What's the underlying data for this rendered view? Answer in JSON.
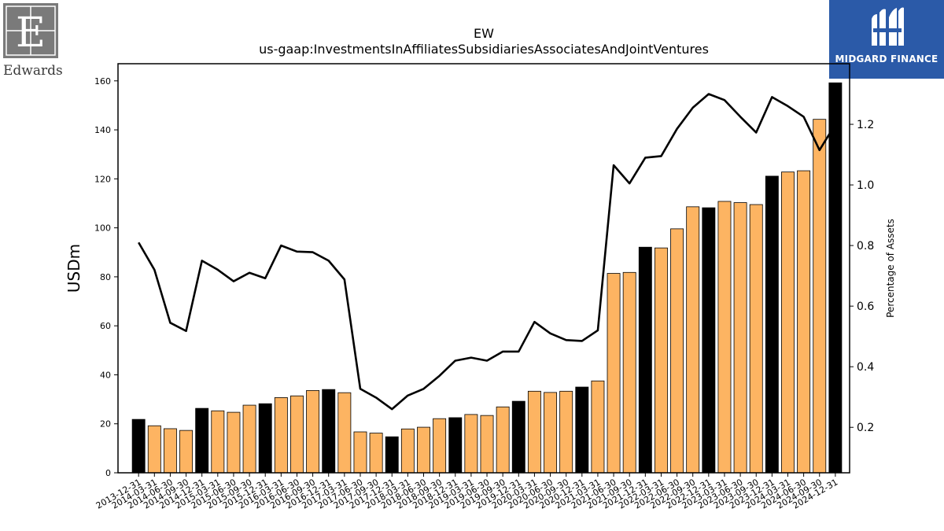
{
  "logos": {
    "left_brand": "Edwards",
    "right_brand": "MIDGARD FINANCE"
  },
  "chart_data": {
    "type": "bar+line",
    "title": "EW",
    "subtitle": "us-gaap:InvestmentsInAffiliatesSubsidiariesAssociatesAndJointVentures",
    "ylabel": "USDm",
    "y2label": "Percentage of Assets",
    "ylim": [
      0,
      167
    ],
    "y2lim": [
      0.05,
      1.4
    ],
    "yticks": [
      0,
      20,
      40,
      60,
      80,
      100,
      120,
      140,
      160
    ],
    "y2ticks": [
      0.2,
      0.4,
      0.6,
      0.8,
      1.0,
      1.2
    ],
    "y2tick_labels": [
      "0.2",
      "0.4",
      "0.6",
      "0.8",
      "1.0",
      "1.2"
    ],
    "colors": {
      "year_end": "#000000",
      "quarter": "#fdb462",
      "line": "#000000"
    },
    "categories": [
      "2013-12-31",
      "2014-03-31",
      "2014-06-30",
      "2014-09-30",
      "2014-12-31",
      "2015-03-31",
      "2015-06-30",
      "2015-09-30",
      "2015-12-31",
      "2016-03-31",
      "2016-06-30",
      "2016-09-30",
      "2016-12-31",
      "2017-03-31",
      "2017-06-30",
      "2017-09-30",
      "2017-12-31",
      "2018-03-31",
      "2018-06-30",
      "2018-09-30",
      "2018-12-31",
      "2019-03-31",
      "2019-06-30",
      "2019-09-30",
      "2019-12-31",
      "2020-03-31",
      "2020-06-30",
      "2020-09-30",
      "2020-12-31",
      "2021-03-31",
      "2021-06-30",
      "2021-09-30",
      "2021-12-31",
      "2022-03-31",
      "2022-06-30",
      "2022-09-30",
      "2022-12-31",
      "2023-03-31",
      "2023-06-30",
      "2023-09-30",
      "2023-12-31",
      "2024-03-31",
      "2024-06-30",
      "2024-09-30",
      "2024-12-31"
    ],
    "series": [
      {
        "kind": "bar",
        "values": [
          21.8,
          19.2,
          18.0,
          17.3,
          26.3,
          25.3,
          24.7,
          27.6,
          28.2,
          30.7,
          31.4,
          33.6,
          34.0,
          32.7,
          16.7,
          16.2,
          14.7,
          17.9,
          18.6,
          22.1,
          22.5,
          23.8,
          23.4,
          26.9,
          29.2,
          33.3,
          32.8,
          33.3,
          35.0,
          37.5,
          81.4,
          81.8,
          92.1,
          91.8,
          99.6,
          108.6,
          108.2,
          110.8,
          110.3,
          109.5,
          121.1,
          122.8,
          123.3,
          144.3,
          159.2
        ]
      },
      {
        "kind": "line",
        "axis": "right",
        "values": [
          0.81,
          0.72,
          0.545,
          0.518,
          0.75,
          0.72,
          0.682,
          0.71,
          0.692,
          0.8,
          0.78,
          0.778,
          0.75,
          0.688,
          0.327,
          0.298,
          0.26,
          0.305,
          0.327,
          0.37,
          0.42,
          0.43,
          0.42,
          0.45,
          0.45,
          0.548,
          0.51,
          0.488,
          0.485,
          0.52,
          1.065,
          1.005,
          1.09,
          1.095,
          1.185,
          1.255,
          1.3,
          1.28,
          1.225,
          1.173,
          1.29,
          1.26,
          1.225,
          1.115,
          1.2
        ]
      }
    ]
  }
}
